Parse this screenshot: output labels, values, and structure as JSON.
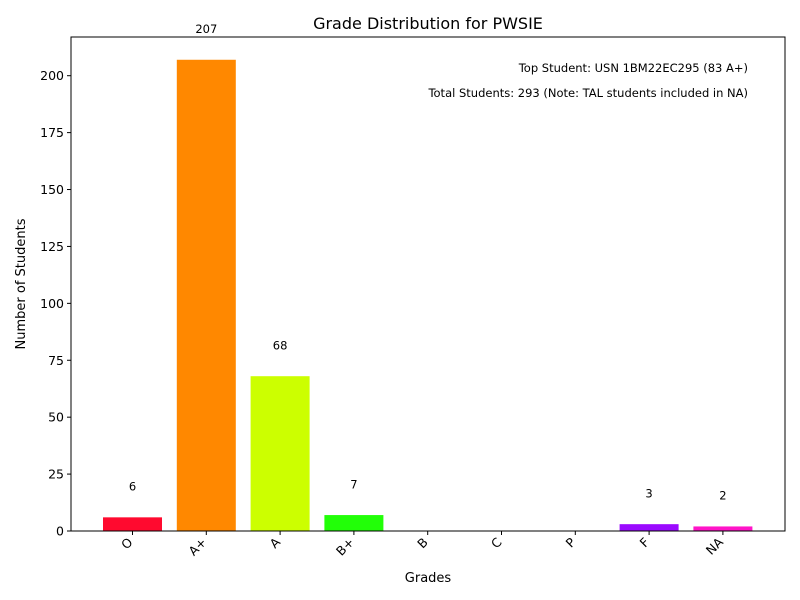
{
  "chart_data": {
    "type": "bar",
    "title": "Grade Distribution for PWSIE",
    "xlabel": "Grades",
    "ylabel": "Number of Students",
    "categories": [
      "O",
      "A+",
      "A",
      "B+",
      "B",
      "C",
      "P",
      "F",
      "NA"
    ],
    "values": [
      6,
      207,
      68,
      7,
      0,
      0,
      0,
      3,
      2
    ],
    "data_labels": [
      "6",
      "207",
      "68",
      "7",
      "",
      "",
      "",
      "3",
      "2"
    ],
    "colors": [
      "#ff0a2f",
      "#ff8800",
      "#ccff00",
      "#22ff08",
      "#00ff66",
      "#00d9ff",
      "#0a3bff",
      "#9b0aff",
      "#ff14c8"
    ],
    "ylim": [
      0,
      217
    ],
    "yticks": [
      0,
      25,
      50,
      75,
      100,
      125,
      150,
      175,
      200
    ],
    "grid": false,
    "legend": "none",
    "annotations": [
      "Top Student: USN 1BM22EC295 (83 A+)",
      "Total Students: 293 (Note: TAL students included in NA)"
    ]
  }
}
